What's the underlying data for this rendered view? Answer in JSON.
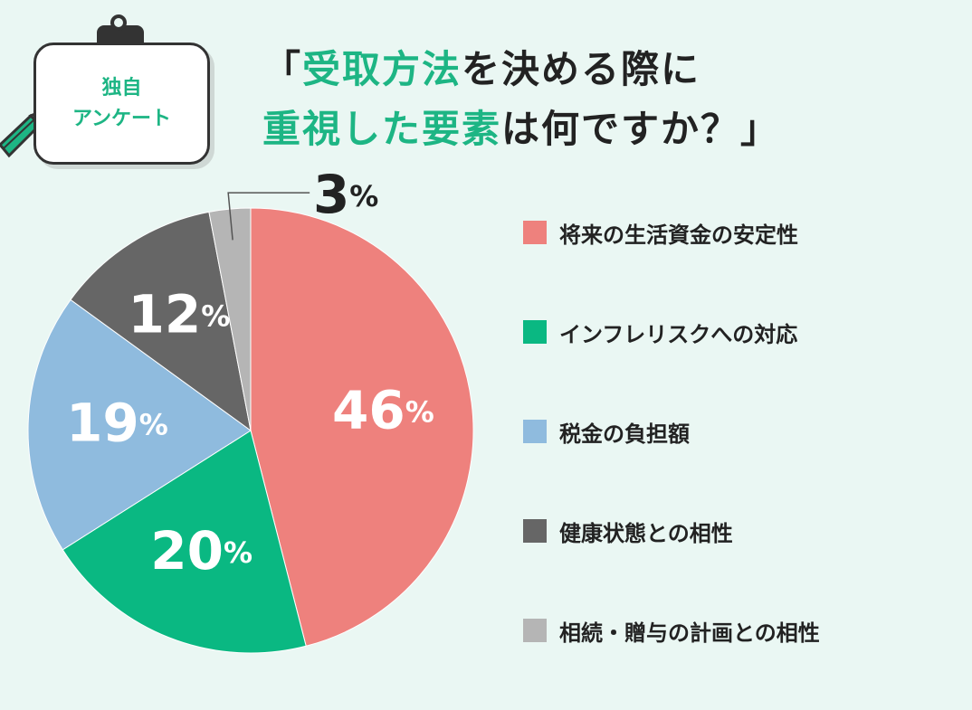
{
  "badge": {
    "line1": "独自",
    "line2": "アンケート"
  },
  "title": {
    "open_bracket": "「",
    "highlight1": "受取方法",
    "part1": "を決める際に",
    "highlight2": "重視した要素",
    "part2": "は何ですか？」"
  },
  "colors": {
    "accent": "#1db584",
    "dark": "#333333",
    "background": "#eaf7f3"
  },
  "chart_data": {
    "type": "pie",
    "title": "",
    "unit": "%",
    "slices": [
      {
        "label": "将来の生活資金の安定性",
        "value": 46,
        "color": "#ee817d"
      },
      {
        "label": "インフレリスクへの対応",
        "value": 20,
        "color": "#0ab882"
      },
      {
        "label": "税金の負担額",
        "value": 19,
        "color": "#8fbbde"
      },
      {
        "label": "健康状態との相性",
        "value": 12,
        "color": "#666666"
      },
      {
        "label": "相続・贈与の計画との相性",
        "value": 3,
        "color": "#b5b5b5"
      }
    ],
    "legend_position": "right"
  }
}
